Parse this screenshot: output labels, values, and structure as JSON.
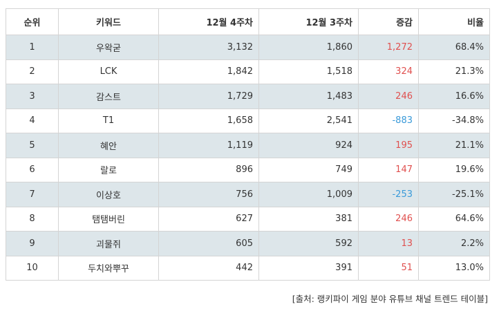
{
  "headers": {
    "rank": "순위",
    "keyword": "키워드",
    "week4": "12월 4주차",
    "week3": "12월 3주차",
    "change": "증감",
    "ratio": "비율"
  },
  "rows": [
    {
      "rank": "1",
      "keyword": "우왁굳",
      "week4": "3,132",
      "week3": "1,860",
      "change": "1,272",
      "ratio": "68.4%"
    },
    {
      "rank": "2",
      "keyword": "LCK",
      "week4": "1,842",
      "week3": "1,518",
      "change": "324",
      "ratio": "21.3%"
    },
    {
      "rank": "3",
      "keyword": "감스트",
      "week4": "1,729",
      "week3": "1,483",
      "change": "246",
      "ratio": "16.6%"
    },
    {
      "rank": "4",
      "keyword": "T1",
      "week4": "1,658",
      "week3": "2,541",
      "change": "-883",
      "ratio": "-34.8%"
    },
    {
      "rank": "5",
      "keyword": "혜안",
      "week4": "1,119",
      "week3": "924",
      "change": "195",
      "ratio": "21.1%"
    },
    {
      "rank": "6",
      "keyword": "랄로",
      "week4": "896",
      "week3": "749",
      "change": "147",
      "ratio": "19.6%"
    },
    {
      "rank": "7",
      "keyword": "이상호",
      "week4": "756",
      "week3": "1,009",
      "change": "-253",
      "ratio": "-25.1%"
    },
    {
      "rank": "8",
      "keyword": "탬탬버린",
      "week4": "627",
      "week3": "381",
      "change": "246",
      "ratio": "64.6%"
    },
    {
      "rank": "9",
      "keyword": "괴물쥐",
      "week4": "605",
      "week3": "592",
      "change": "13",
      "ratio": "2.2%"
    },
    {
      "rank": "10",
      "keyword": "두치와뿌꾸",
      "week4": "442",
      "week3": "391",
      "change": "51",
      "ratio": "13.0%"
    }
  ],
  "source": "[출처: 랭키파이 게임 분야 유튜브 채널 트렌드 테이블]",
  "colors": {
    "positive_change": "#e0504f",
    "negative_change": "#3a9ad9",
    "shaded_row": "#dde6ea",
    "border": "#d4d4d4"
  }
}
